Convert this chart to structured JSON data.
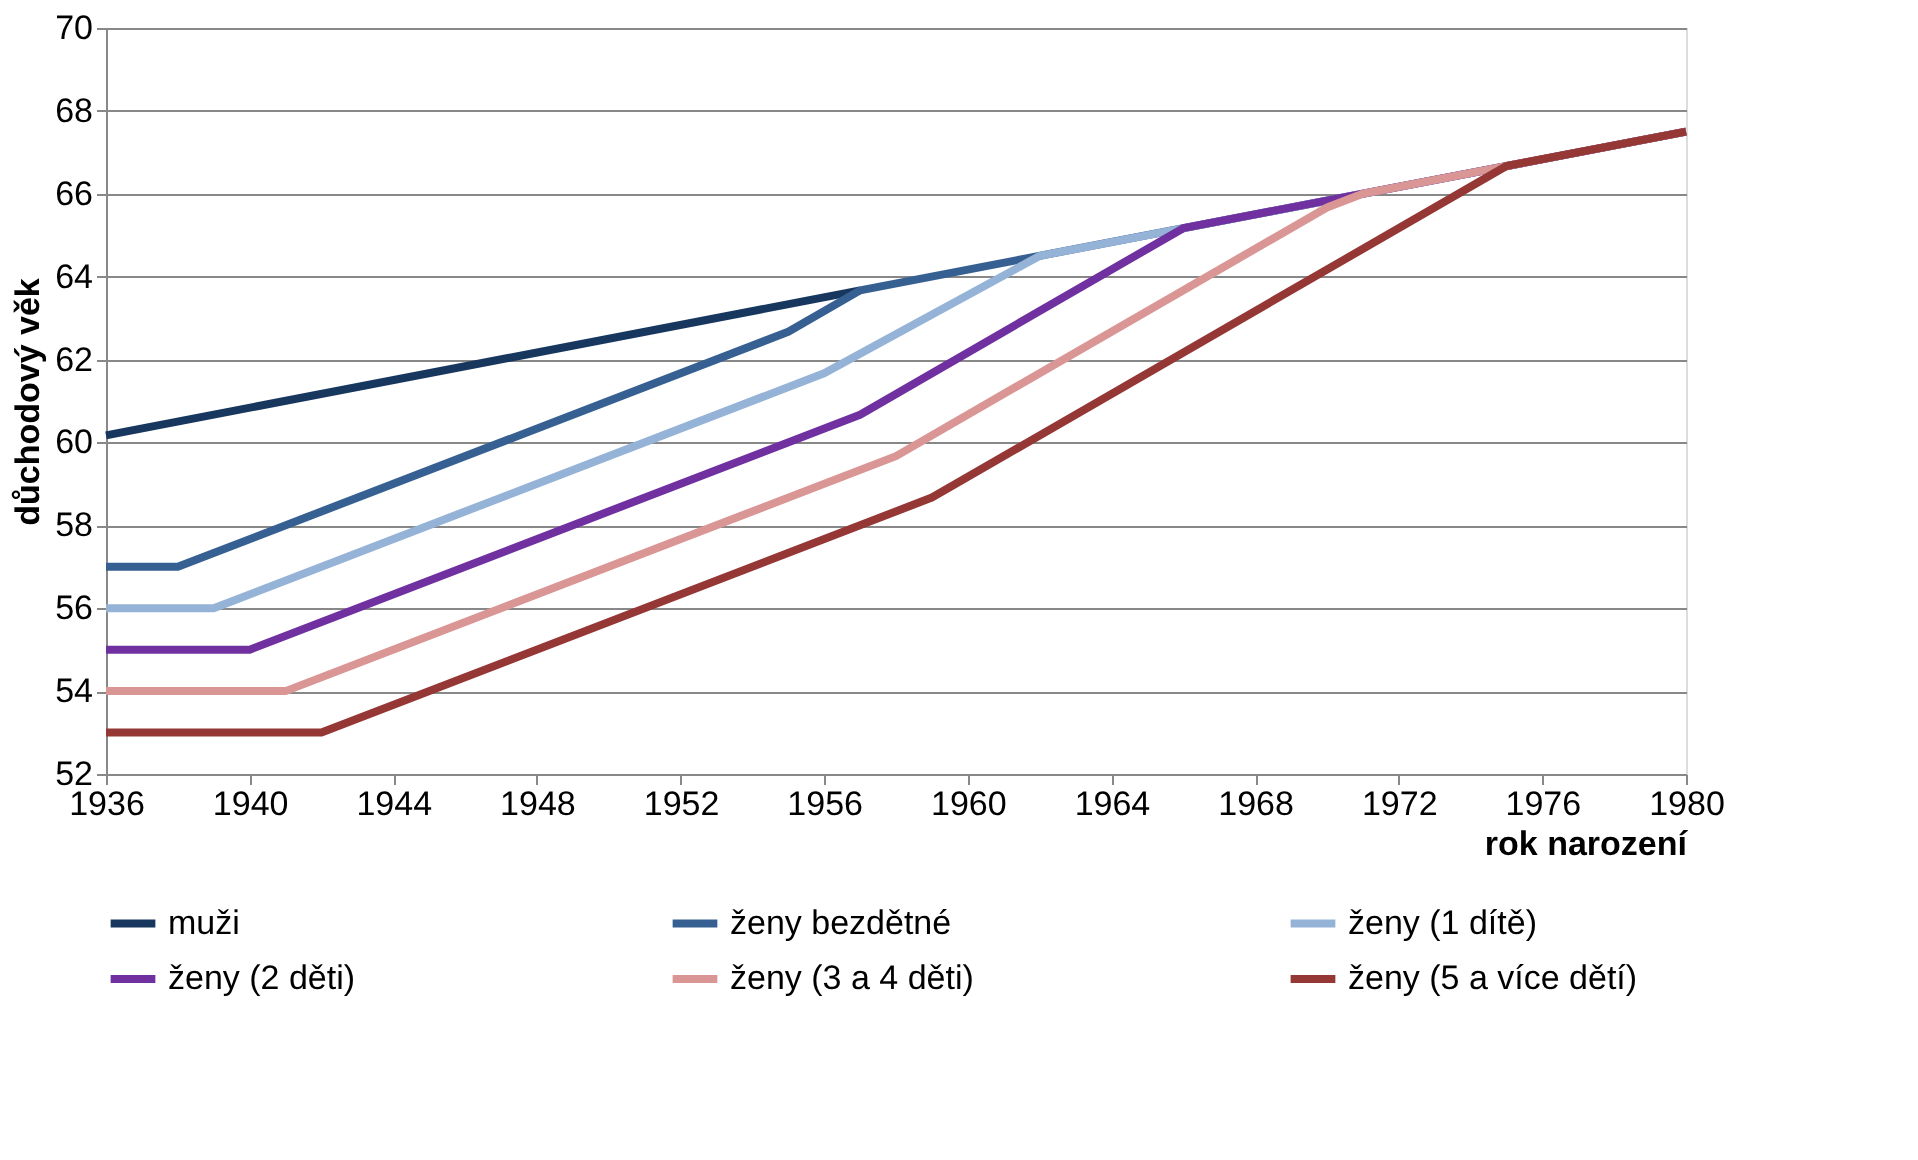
{
  "chart_data": {
    "type": "line",
    "xlabel": "rok narození",
    "ylabel": "důchodový věk",
    "xlim": [
      1936,
      1980
    ],
    "xticks": [
      1936,
      1940,
      1944,
      1948,
      1952,
      1956,
      1960,
      1964,
      1968,
      1972,
      1976,
      1980
    ],
    "ylim": [
      52,
      70
    ],
    "yticks": [
      52,
      54,
      56,
      58,
      60,
      62,
      64,
      66,
      68,
      70
    ],
    "grid": "y",
    "legend": "bottom",
    "marker": "none",
    "line_style": "solid",
    "series": [
      {
        "name": "muži",
        "color": "#17375e",
        "x": [
          1936,
          1957
        ],
        "values": [
          60.17,
          63.67
        ]
      },
      {
        "name": "ženy bezdětné",
        "color": "#376092",
        "x": [
          1936,
          1938,
          1955,
          1957,
          1980
        ],
        "values": [
          57,
          57,
          62.67,
          63.67,
          67.5
        ]
      },
      {
        "name": "ženy (1 dítě)",
        "color": "#95b3d7",
        "x": [
          1936,
          1939,
          1956,
          1962,
          1980
        ],
        "values": [
          56,
          56,
          61.67,
          64.5,
          67.5
        ]
      },
      {
        "name": "ženy (2 děti)",
        "color": "#7030a0",
        "x": [
          1936,
          1940,
          1957,
          1966,
          1980
        ],
        "values": [
          55,
          55,
          60.67,
          65.17,
          67.5
        ]
      },
      {
        "name": "ženy (3 a 4 děti)",
        "color": "#d99694",
        "x": [
          1936,
          1941,
          1958,
          1970,
          1971,
          1980
        ],
        "values": [
          54,
          54,
          59.67,
          65.67,
          66,
          67.5
        ]
      },
      {
        "name": "ženy (5 a více dětí)",
        "color": "#953735",
        "x": [
          1936,
          1942,
          1959,
          1975,
          1980
        ],
        "values": [
          53,
          53,
          58.67,
          66.67,
          67.5
        ]
      }
    ]
  }
}
